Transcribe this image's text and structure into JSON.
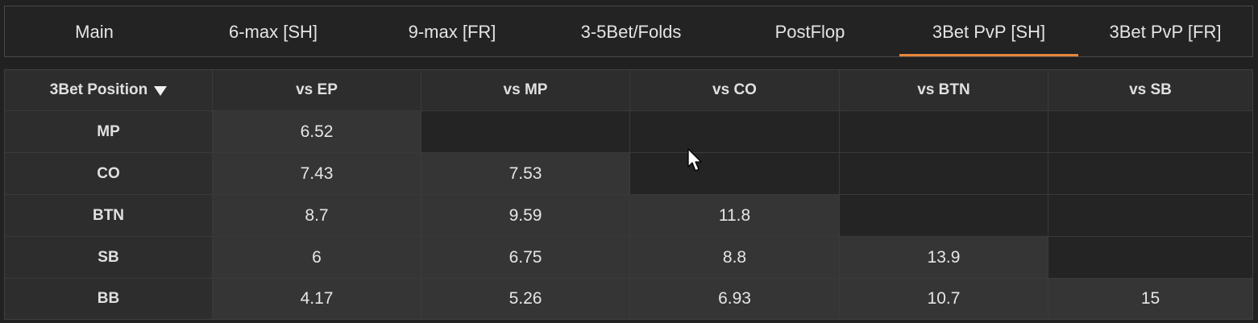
{
  "colors": {
    "accent": "#e8873a",
    "background": "#212121"
  },
  "tabs": [
    {
      "label": "Main"
    },
    {
      "label": "6-max [SH]"
    },
    {
      "label": "9-max [FR]"
    },
    {
      "label": "3-5Bet/Folds"
    },
    {
      "label": "PostFlop"
    },
    {
      "label": "3Bet PvP [SH]",
      "active": true
    },
    {
      "label": "3Bet PvP [FR]"
    }
  ],
  "table": {
    "corner_label": "3Bet Position",
    "corner_icon": "sort-down-icon",
    "columns": [
      "vs EP",
      "vs MP",
      "vs CO",
      "vs BTN",
      "vs SB"
    ],
    "rows": [
      {
        "label": "MP",
        "values": [
          "6.52",
          "",
          "",
          "",
          ""
        ]
      },
      {
        "label": "CO",
        "values": [
          "7.43",
          "7.53",
          "",
          "",
          ""
        ]
      },
      {
        "label": "BTN",
        "values": [
          "8.7",
          "9.59",
          "11.8",
          "",
          ""
        ]
      },
      {
        "label": "SB",
        "values": [
          "6",
          "6.75",
          "8.8",
          "13.9",
          ""
        ]
      },
      {
        "label": "BB",
        "values": [
          "4.17",
          "5.26",
          "6.93",
          "10.7",
          "15"
        ]
      }
    ]
  }
}
